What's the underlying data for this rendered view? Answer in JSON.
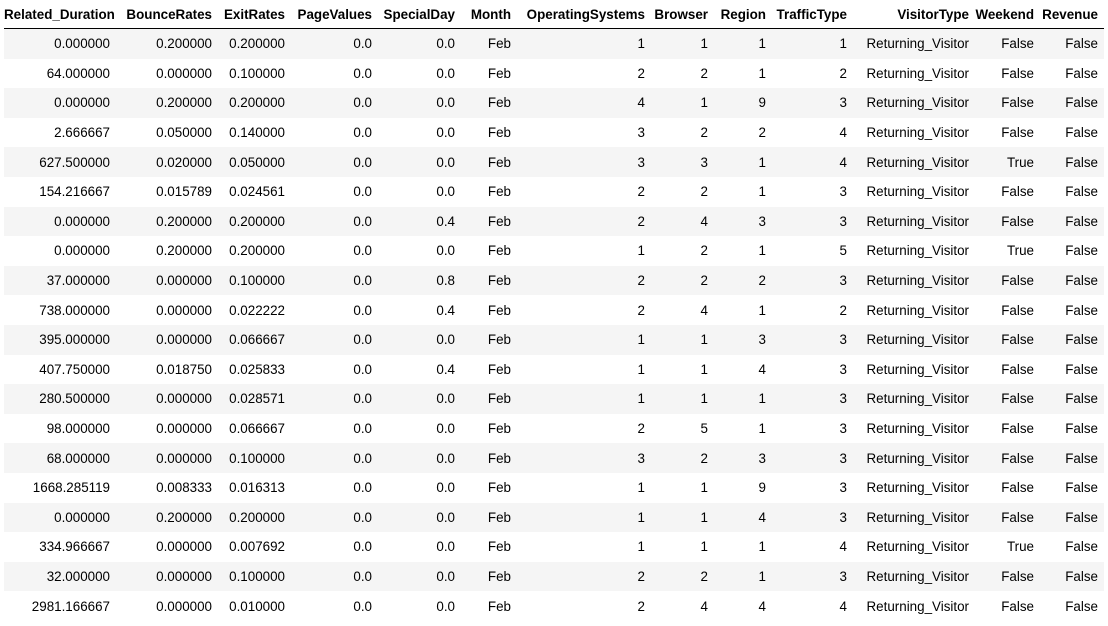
{
  "table": {
    "columns": [
      "Related_Duration",
      "BounceRates",
      "ExitRates",
      "PageValues",
      "SpecialDay",
      "Month",
      "OperatingSystems",
      "Browser",
      "Region",
      "TrafficType",
      "VisitorType",
      "Weekend",
      "Revenue"
    ],
    "rows": [
      [
        "0.000000",
        "0.200000",
        "0.200000",
        "0.0",
        "0.0",
        "Feb",
        "1",
        "1",
        "1",
        "1",
        "Returning_Visitor",
        "False",
        "False"
      ],
      [
        "64.000000",
        "0.000000",
        "0.100000",
        "0.0",
        "0.0",
        "Feb",
        "2",
        "2",
        "1",
        "2",
        "Returning_Visitor",
        "False",
        "False"
      ],
      [
        "0.000000",
        "0.200000",
        "0.200000",
        "0.0",
        "0.0",
        "Feb",
        "4",
        "1",
        "9",
        "3",
        "Returning_Visitor",
        "False",
        "False"
      ],
      [
        "2.666667",
        "0.050000",
        "0.140000",
        "0.0",
        "0.0",
        "Feb",
        "3",
        "2",
        "2",
        "4",
        "Returning_Visitor",
        "False",
        "False"
      ],
      [
        "627.500000",
        "0.020000",
        "0.050000",
        "0.0",
        "0.0",
        "Feb",
        "3",
        "3",
        "1",
        "4",
        "Returning_Visitor",
        "True",
        "False"
      ],
      [
        "154.216667",
        "0.015789",
        "0.024561",
        "0.0",
        "0.0",
        "Feb",
        "2",
        "2",
        "1",
        "3",
        "Returning_Visitor",
        "False",
        "False"
      ],
      [
        "0.000000",
        "0.200000",
        "0.200000",
        "0.0",
        "0.4",
        "Feb",
        "2",
        "4",
        "3",
        "3",
        "Returning_Visitor",
        "False",
        "False"
      ],
      [
        "0.000000",
        "0.200000",
        "0.200000",
        "0.0",
        "0.0",
        "Feb",
        "1",
        "2",
        "1",
        "5",
        "Returning_Visitor",
        "True",
        "False"
      ],
      [
        "37.000000",
        "0.000000",
        "0.100000",
        "0.0",
        "0.8",
        "Feb",
        "2",
        "2",
        "2",
        "3",
        "Returning_Visitor",
        "False",
        "False"
      ],
      [
        "738.000000",
        "0.000000",
        "0.022222",
        "0.0",
        "0.4",
        "Feb",
        "2",
        "4",
        "1",
        "2",
        "Returning_Visitor",
        "False",
        "False"
      ],
      [
        "395.000000",
        "0.000000",
        "0.066667",
        "0.0",
        "0.0",
        "Feb",
        "1",
        "1",
        "3",
        "3",
        "Returning_Visitor",
        "False",
        "False"
      ],
      [
        "407.750000",
        "0.018750",
        "0.025833",
        "0.0",
        "0.4",
        "Feb",
        "1",
        "1",
        "4",
        "3",
        "Returning_Visitor",
        "False",
        "False"
      ],
      [
        "280.500000",
        "0.000000",
        "0.028571",
        "0.0",
        "0.0",
        "Feb",
        "1",
        "1",
        "1",
        "3",
        "Returning_Visitor",
        "False",
        "False"
      ],
      [
        "98.000000",
        "0.000000",
        "0.066667",
        "0.0",
        "0.0",
        "Feb",
        "2",
        "5",
        "1",
        "3",
        "Returning_Visitor",
        "False",
        "False"
      ],
      [
        "68.000000",
        "0.000000",
        "0.100000",
        "0.0",
        "0.0",
        "Feb",
        "3",
        "2",
        "3",
        "3",
        "Returning_Visitor",
        "False",
        "False"
      ],
      [
        "1668.285119",
        "0.008333",
        "0.016313",
        "0.0",
        "0.0",
        "Feb",
        "1",
        "1",
        "9",
        "3",
        "Returning_Visitor",
        "False",
        "False"
      ],
      [
        "0.000000",
        "0.200000",
        "0.200000",
        "0.0",
        "0.0",
        "Feb",
        "1",
        "1",
        "4",
        "3",
        "Returning_Visitor",
        "False",
        "False"
      ],
      [
        "334.966667",
        "0.000000",
        "0.007692",
        "0.0",
        "0.0",
        "Feb",
        "1",
        "1",
        "1",
        "4",
        "Returning_Visitor",
        "True",
        "False"
      ],
      [
        "32.000000",
        "0.000000",
        "0.100000",
        "0.0",
        "0.0",
        "Feb",
        "2",
        "2",
        "1",
        "3",
        "Returning_Visitor",
        "False",
        "False"
      ],
      [
        "2981.166667",
        "0.000000",
        "0.010000",
        "0.0",
        "0.0",
        "Feb",
        "2",
        "4",
        "4",
        "4",
        "Returning_Visitor",
        "False",
        "False"
      ]
    ]
  }
}
